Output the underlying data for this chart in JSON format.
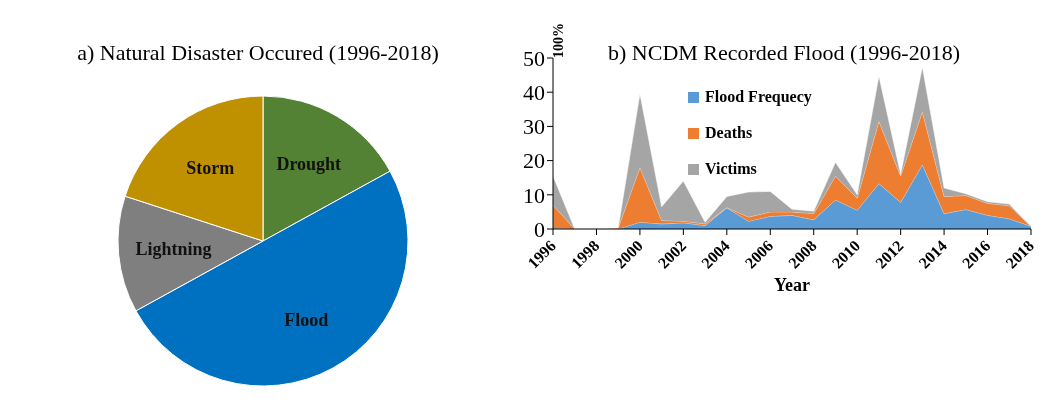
{
  "chart_data": [
    {
      "type": "pie",
      "title": "a) Natural Disaster Occured (1996-2018)",
      "categories": [
        "Drought",
        "Flood",
        "Lightning",
        "Storm"
      ],
      "values": [
        17,
        50,
        13,
        20
      ],
      "colors": [
        "#548235",
        "#0070c0",
        "#7f7f7f",
        "#bf9000"
      ],
      "legend": false
    },
    {
      "type": "area",
      "title": "b) NCDM Recorded Flood (1996-2018)",
      "xlabel": "Year",
      "stacked": true,
      "x": [
        1996,
        1997,
        1998,
        1999,
        2000,
        2001,
        2002,
        2003,
        2004,
        2005,
        2006,
        2007,
        2008,
        2009,
        2010,
        2011,
        2012,
        2013,
        2014,
        2015,
        2016,
        2017,
        2018
      ],
      "series": [
        {
          "name": "Flood Frequecy",
          "color": "#5b9bd5",
          "values": [
            0.3,
            0,
            0,
            0,
            2,
            1.5,
            1.8,
            1,
            6.2,
            2.3,
            3.7,
            4,
            2.7,
            8.5,
            5.5,
            13.3,
            7.8,
            18.8,
            4.5,
            5.7,
            4,
            3,
            0.8
          ]
        },
        {
          "name": "Deaths",
          "color": "#ed7d31",
          "values": [
            6.7,
            0,
            0,
            0.3,
            16,
            1,
            0.5,
            0.5,
            0.1,
            1.2,
            1.3,
            1,
            1.8,
            7,
            3.5,
            18.2,
            7.7,
            15.5,
            5,
            4.1,
            3.5,
            3.8,
            0
          ]
        },
        {
          "name": "Victims",
          "color": "#a5a5a5",
          "values": [
            8.5,
            0,
            0,
            0,
            21.5,
            4,
            11.7,
            0.5,
            3.2,
            7.3,
            6,
            0.8,
            0.7,
            4,
            1,
            13.2,
            0.5,
            13,
            2.5,
            0.5,
            0.5,
            0.5,
            0
          ]
        }
      ],
      "xlim": [
        1996,
        2018
      ],
      "xticks": [
        1996,
        1998,
        2000,
        2002,
        2004,
        2006,
        2008,
        2010,
        2012,
        2014,
        2016,
        2018
      ],
      "ylim": [
        0,
        50
      ],
      "yticks": [
        0,
        10,
        20,
        30,
        40,
        50
      ],
      "legend": "left",
      "annotations": [
        "100%"
      ]
    }
  ]
}
